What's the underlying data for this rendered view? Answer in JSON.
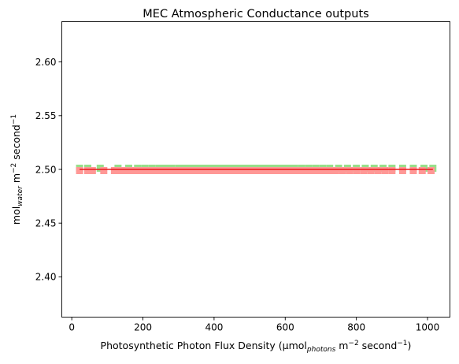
{
  "chart_data": {
    "type": "line",
    "title": "MEC Atmospheric Conductance outputs",
    "xlabel": {
      "parts": [
        {
          "text": "Photosynthetic Photon Flux Density (μmol",
          "style": "normal"
        },
        {
          "text": "photons",
          "style": "sub-italic"
        },
        {
          "text": " m",
          "style": "normal"
        },
        {
          "text": "−2",
          "style": "sup"
        },
        {
          "text": " second",
          "style": "normal"
        },
        {
          "text": "−1",
          "style": "sup"
        },
        {
          "text": ")",
          "style": "normal"
        }
      ]
    },
    "ylabel": {
      "parts": [
        {
          "text": "mol",
          "style": "normal"
        },
        {
          "text": "water",
          "style": "sub-italic"
        },
        {
          "text": " m",
          "style": "normal"
        },
        {
          "text": "−2",
          "style": "sup"
        },
        {
          "text": " second",
          "style": "normal"
        },
        {
          "text": "−1",
          "style": "sup"
        }
      ]
    },
    "xlim": [
      -28,
      1063
    ],
    "ylim": [
      2.3625,
      2.6375
    ],
    "xticks": [
      {
        "value": 0,
        "label": "0"
      },
      {
        "value": 200,
        "label": "200"
      },
      {
        "value": 400,
        "label": "400"
      },
      {
        "value": 600,
        "label": "600"
      },
      {
        "value": 800,
        "label": "800"
      },
      {
        "value": 1000,
        "label": "1000"
      }
    ],
    "yticks": [
      {
        "value": 2.4,
        "label": "2.40"
      },
      {
        "value": 2.45,
        "label": "2.45"
      },
      {
        "value": 2.5,
        "label": "2.50"
      },
      {
        "value": 2.55,
        "label": "2.55"
      },
      {
        "value": 2.6,
        "label": "2.60"
      }
    ],
    "grid": false,
    "legend": "none",
    "series": [
      {
        "color": "#98df8a",
        "style": "square-markers",
        "y": 2.5,
        "x": [
          22,
          45,
          80,
          130,
          160,
          185,
          205,
          225,
          245,
          262,
          280,
          300,
          318,
          336,
          355,
          372,
          390,
          408,
          426,
          445,
          462,
          480,
          498,
          516,
          534,
          552,
          570,
          588,
          606,
          625,
          645,
          665,
          685,
          705,
          725,
          750,
          775,
          800,
          825,
          850,
          875,
          900,
          930,
          960,
          990,
          1015
        ]
      },
      {
        "color": "#ff9896",
        "style": "square-markers",
        "y": 2.5,
        "x": [
          22,
          45,
          58,
          90,
          120,
          132,
          144,
          156,
          168,
          180,
          192,
          204,
          216,
          228,
          240,
          252,
          264,
          276,
          288,
          300,
          312,
          324,
          336,
          348,
          360,
          372,
          384,
          396,
          408,
          420,
          432,
          444,
          456,
          468,
          480,
          492,
          504,
          516,
          528,
          540,
          552,
          564,
          576,
          588,
          600,
          612,
          624,
          636,
          650,
          665,
          680,
          695,
          710,
          725,
          740,
          760,
          780,
          800,
          820,
          840,
          860,
          880,
          900,
          930,
          960,
          985,
          1010
        ]
      },
      {
        "color": "#e8191c",
        "style": "line",
        "y": 2.5,
        "x": [
          22,
          1015
        ]
      }
    ]
  }
}
